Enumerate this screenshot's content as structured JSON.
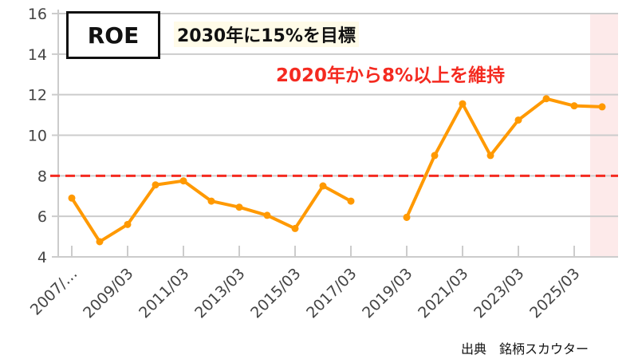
{
  "chart_data": {
    "type": "line",
    "title": "ROE",
    "annotations": [
      "2030年に15%を目標",
      "2020年から8%以上を維持"
    ],
    "x": [
      "2007/03",
      "2008/03",
      "2009/03",
      "2010/03",
      "2011/03",
      "2012/03",
      "2013/03",
      "2014/03",
      "2015/03",
      "2016/03",
      "2017/03",
      "2018/03",
      "2019/03",
      "2020/03",
      "2021/03",
      "2022/03",
      "2023/03",
      "2024/03",
      "2025/03",
      "2026/03"
    ],
    "tick_labels": [
      "2007/…",
      "2009/03",
      "2011/03",
      "2013/03",
      "2015/03",
      "2017/03",
      "2019/03",
      "2021/03",
      "2023/03",
      "2025/03"
    ],
    "values": [
      6.9,
      4.75,
      5.6,
      7.55,
      7.75,
      6.75,
      6.45,
      6.05,
      5.4,
      7.5,
      6.75,
      null,
      5.95,
      9.0,
      11.55,
      9.0,
      10.75,
      11.8,
      11.45,
      11.4
    ],
    "ylim": [
      4,
      16
    ],
    "yticks": [
      4,
      6,
      8,
      10,
      12,
      14,
      16
    ],
    "reference_line": 8,
    "forecast_shaded": "2026/03",
    "grid": true,
    "colors": {
      "line": "#ff9900",
      "reference": "#f42a20",
      "shade": "#fdeaea",
      "grid": "#cccccc"
    }
  },
  "source": "出典　銘柄スカウター"
}
